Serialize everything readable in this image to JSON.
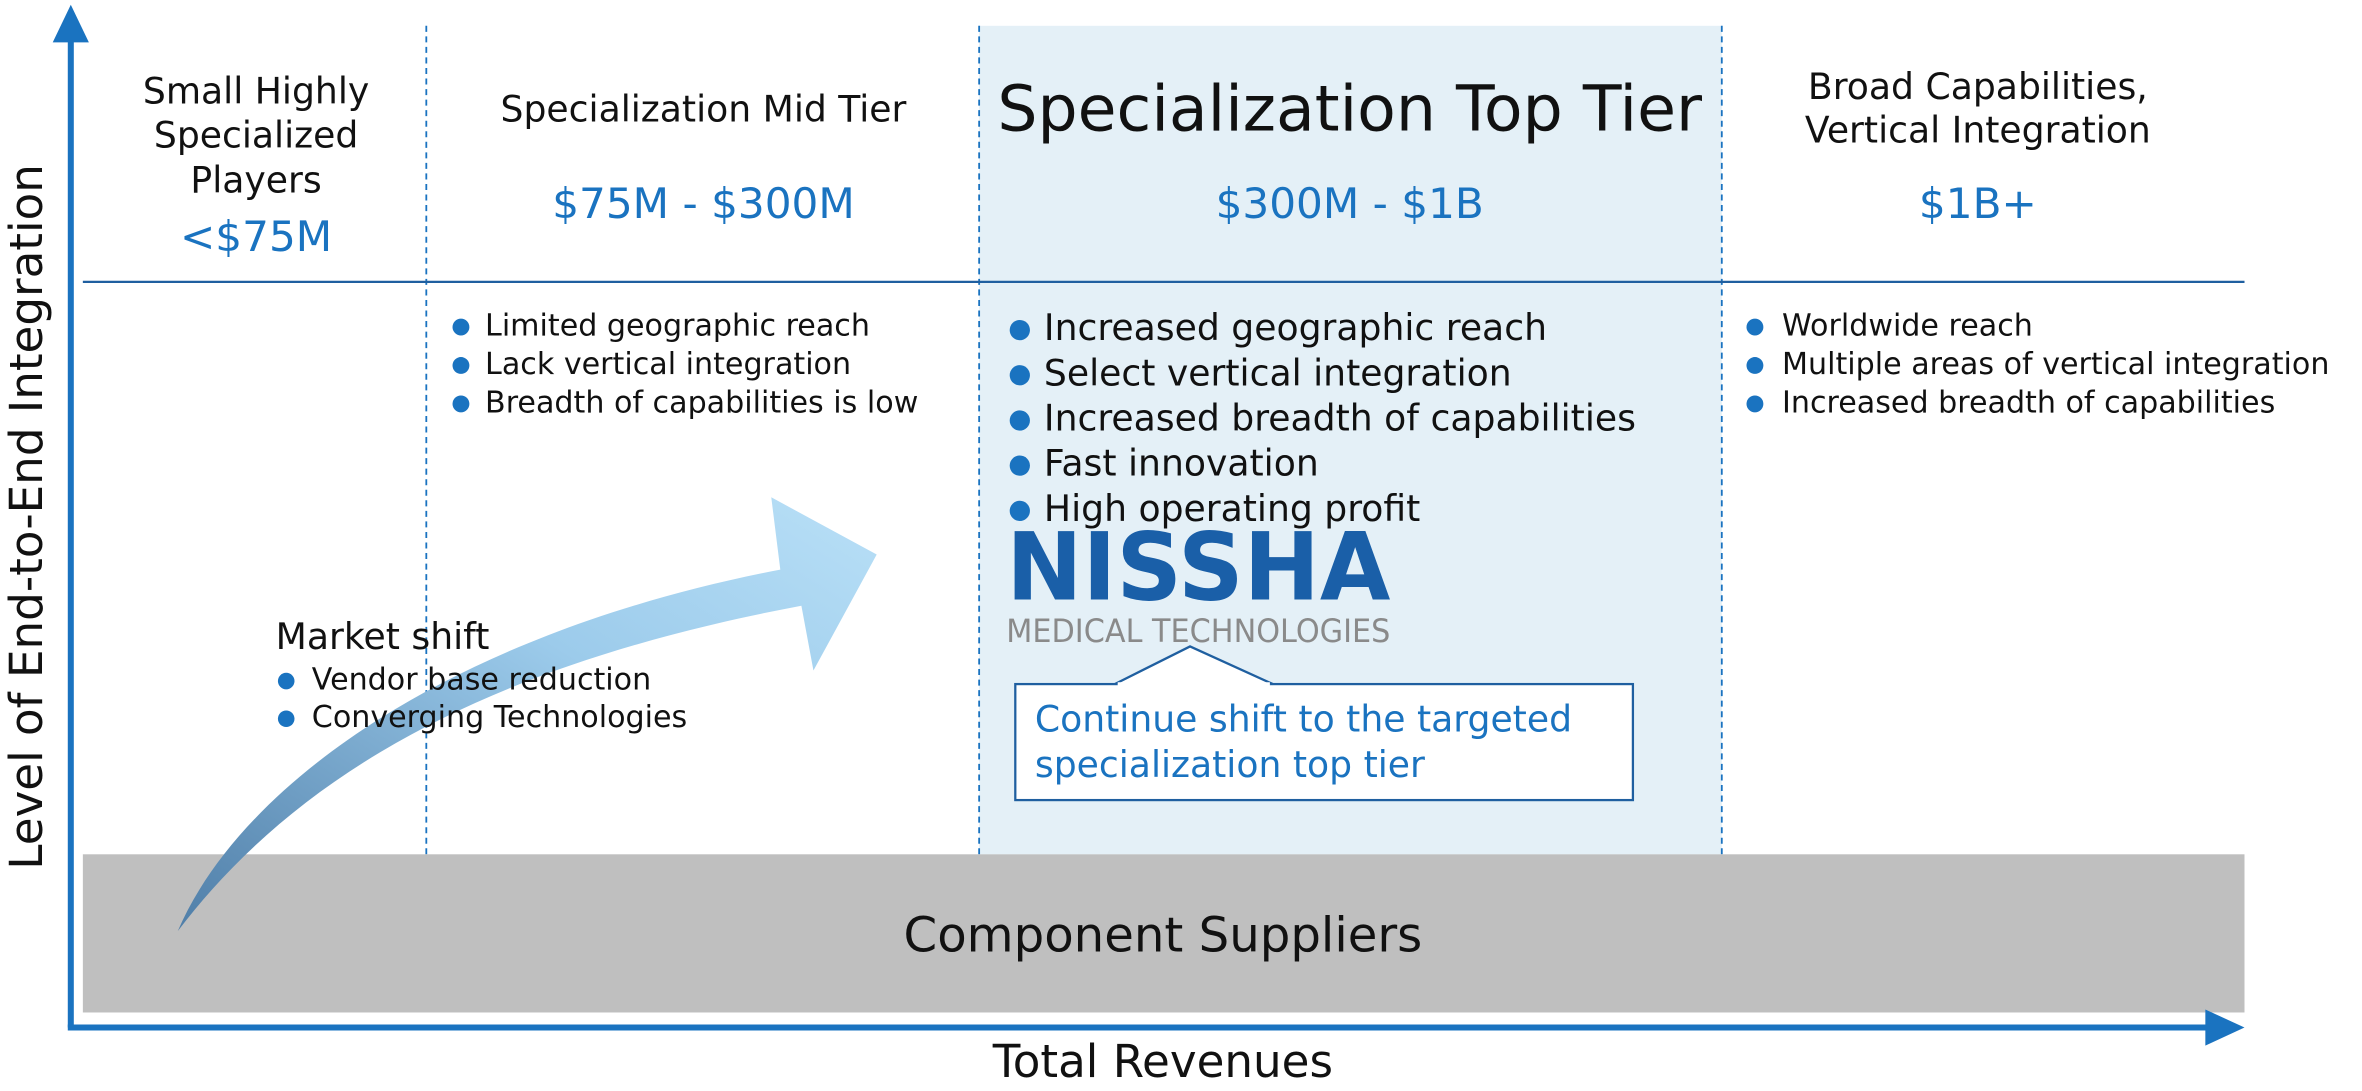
{
  "axes": {
    "y_label": "Level of End-to-End Integration",
    "x_label": "Total Revenues"
  },
  "columns": [
    {
      "title_lines": [
        "Small Highly",
        "Specialized",
        "Players"
      ],
      "range": "<$75M",
      "bullets": []
    },
    {
      "title_lines": [
        "Specialization Mid Tier"
      ],
      "range": "$75M - $300M",
      "bullets": [
        "Limited geographic reach",
        "Lack vertical integration",
        "Breadth of capabilities is low"
      ]
    },
    {
      "title_lines": [
        "Specialization Top Tier"
      ],
      "range": "$300M - $1B",
      "bullets": [
        "Increased geographic reach",
        "Select vertical integration",
        "Increased breadth of capabilities",
        "Fast innovation",
        "High operating profit"
      ]
    },
    {
      "title_lines": [
        "Broad Capabilities,",
        "Vertical Integration"
      ],
      "range": "$1B+",
      "bullets": [
        "Worldwide reach",
        "Multiple areas of vertical integration",
        "Increased breadth of capabilities"
      ]
    }
  ],
  "market_shift": {
    "title": "Market shift",
    "bullets": [
      "Vendor base reduction",
      "Converging Technologies"
    ]
  },
  "logo": {
    "name": "NISSHA",
    "subtitle": "MEDICAL TECHNOLOGIES"
  },
  "callout": {
    "lines": [
      "Continue shift to the targeted",
      "specialization top tier"
    ]
  },
  "base": "Component Suppliers"
}
